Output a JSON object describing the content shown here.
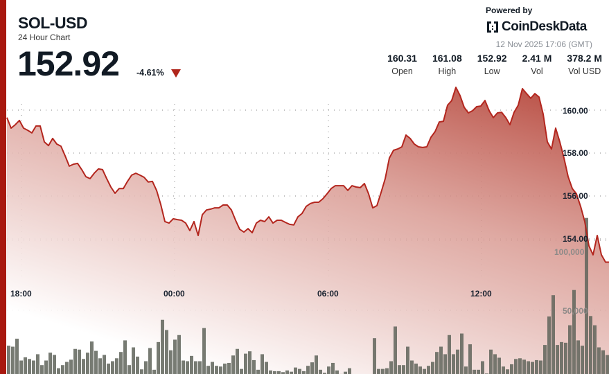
{
  "header": {
    "title": "SOL-USD",
    "subtitle": "24 Hour Chart",
    "price": "152.92",
    "change": "-4.61%",
    "change_direction": "down"
  },
  "branding": {
    "powered_by": "Powered by",
    "logo_text": "CoinDeskData",
    "timestamp": "12 Nov 2025 17:06 (GMT)"
  },
  "stats": [
    {
      "value": "160.31",
      "label": "Open"
    },
    {
      "value": "161.08",
      "label": "High"
    },
    {
      "value": "152.92",
      "label": "Low"
    },
    {
      "value": "2.41 M",
      "label": "Vol"
    },
    {
      "value": "378.2 M",
      "label": "Vol USD"
    }
  ],
  "colors": {
    "accent": "#a8180f",
    "line": "#b3261e",
    "fill_top": "#b5453a",
    "volume_bar": "#5f645b",
    "down": "#b0261c"
  },
  "chart_data": [
    {
      "type": "area",
      "series": [
        {
          "values": [
            159.65,
            159.16,
            159.32,
            159.52,
            159.16,
            159.06,
            158.94,
            159.26,
            159.26,
            158.52,
            158.35,
            158.68,
            158.42,
            158.32,
            157.87,
            157.39,
            157.48,
            157.52,
            157.23,
            156.9,
            156.81,
            157.06,
            157.26,
            157.23,
            156.81,
            156.42,
            156.13,
            156.35,
            156.35,
            156.68,
            156.97,
            157.06,
            156.97,
            156.87,
            156.65,
            156.68,
            156.26,
            155.61,
            154.81,
            154.74,
            154.94,
            154.9,
            154.87,
            154.74,
            154.39,
            154.81,
            154.16,
            155.13,
            155.35,
            155.39,
            155.45,
            155.45,
            155.58,
            155.58,
            155.35,
            154.87,
            154.45,
            154.32,
            154.48,
            154.29,
            154.74,
            154.87,
            154.81,
            155.03,
            154.74,
            154.87,
            154.87,
            154.77,
            154.68,
            154.65,
            155.03,
            155.19,
            155.52,
            155.65,
            155.71,
            155.71,
            155.87,
            156.1,
            156.35,
            156.48,
            156.48,
            156.48,
            156.26,
            156.48,
            156.42,
            156.39,
            156.58,
            156.1,
            155.45,
            155.55,
            156.16,
            156.81,
            157.77,
            158.13,
            158.19,
            158.29,
            158.84,
            158.68,
            158.42,
            158.29,
            158.26,
            158.29,
            158.74,
            159.0,
            159.45,
            159.48,
            160.23,
            160.45,
            161.06,
            160.68,
            160.13,
            159.87,
            159.97,
            160.16,
            160.19,
            160.45,
            159.97,
            159.65,
            159.87,
            159.9,
            159.65,
            159.32,
            159.9,
            160.23,
            161.0,
            160.77,
            160.55,
            160.77,
            160.61,
            159.81,
            158.52,
            158.19,
            159.16,
            158.52,
            157.77,
            156.9,
            156.35,
            156.1,
            155.52,
            154.81,
            153.68,
            153.26,
            154.16,
            153.26,
            152.92
          ]
        }
      ],
      "x_ticks": [
        "18:00",
        "00:00",
        "06:00",
        "12:00"
      ],
      "y_ticks": [
        "154.00",
        "156.00",
        "158.00",
        "160.00"
      ],
      "y_tick_values": [
        154,
        156,
        158,
        160
      ],
      "grid": true
    },
    {
      "type": "bar",
      "series": [
        {
          "values": [
            24700,
            24000,
            29700,
            14100,
            16400,
            15200,
            14100,
            18600,
            10800,
            14100,
            19700,
            18100,
            8600,
            10800,
            13100,
            14700,
            22400,
            21900,
            15200,
            19700,
            27700,
            21000,
            15700,
            18100,
            11900,
            13600,
            15700,
            20200,
            28500,
            10800,
            23500,
            16900,
            7800,
            13600,
            23000,
            7500,
            27300,
            43200,
            35900,
            21400,
            29000,
            32300,
            14100,
            13600,
            17400,
            13600,
            13600,
            37300,
            10300,
            13100,
            10300,
            9800,
            11900,
            12400,
            17700,
            22400,
            8100,
            19000,
            20700,
            14400,
            7500,
            18600,
            13100,
            7000,
            6500,
            6500,
            5800,
            7000,
            6100,
            9100,
            8100,
            6500,
            10300,
            12800,
            17700,
            7500,
            5300,
            9800,
            12400,
            7000,
            4500,
            6100,
            8600,
            3600,
            2900,
            2200,
            2900,
            3100,
            30100,
            8100,
            8100,
            8600,
            13600,
            38400,
            10800,
            10800,
            24000,
            14100,
            11900,
            9800,
            8100,
            10300,
            13100,
            20200,
            24000,
            18600,
            32300,
            18600,
            21900,
            33400,
            9800,
            25700,
            7500,
            7500,
            13600,
            4800,
            21900,
            18600,
            16100,
            9800,
            7800,
            11400,
            15200,
            15700,
            14700,
            13600,
            13100,
            14400,
            14100,
            25200,
            45600,
            60800,
            25200,
            27300,
            26800,
            39300,
            64500,
            28500,
            24700,
            116000,
            45900,
            39300,
            23500,
            21400,
            18000
          ]
        }
      ],
      "y_ticks": [
        "50,000",
        "100,000"
      ],
      "y_tick_values": [
        50000,
        100000
      ]
    }
  ]
}
